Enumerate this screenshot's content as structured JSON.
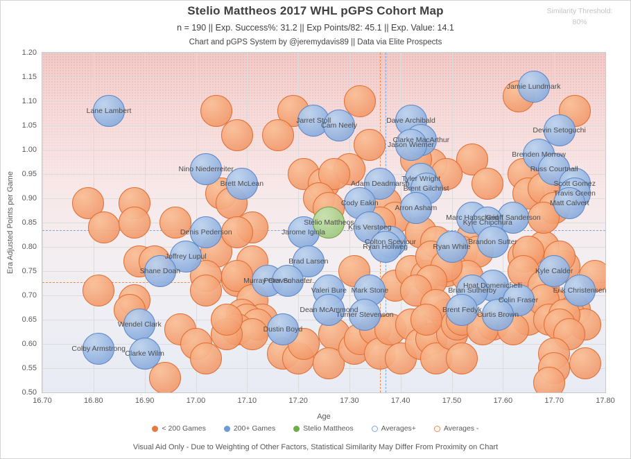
{
  "header": {
    "title": "Stelio Mattheos 2017 WHL pGPS Cohort Map",
    "subtitle": "n = 190 || Exp. Success%: 31.2 || Exp Points/82: 45.1 || Exp. Value: 14.1",
    "credit": "Chart and pGPS System by @jeremydavis89 || Data via Elite Prospects",
    "similarity_label": "Similarity Threshold:",
    "similarity_value": "80%"
  },
  "footnote": "Visual Aid Only - Due to Weighting of Other Factors, Statistical Similarity May Differ From Proximity on Chart",
  "legend": {
    "items": [
      {
        "label": "< 200 Games",
        "type": "filled",
        "color": "#e8793e"
      },
      {
        "label": "200+ Games",
        "type": "filled",
        "color": "#6e9bd1"
      },
      {
        "label": "Stelio Mattheos",
        "type": "filled",
        "color": "#71ad47"
      },
      {
        "label": "Averages+",
        "type": "open",
        "color": "#7ba7db"
      },
      {
        "label": "Averages -",
        "type": "open",
        "color": "#ed8a50"
      }
    ]
  },
  "chart_data": {
    "type": "scatter",
    "xlabel": "Age",
    "ylabel": "Era Adjusted Points per Game",
    "xlim": [
      16.7,
      17.8
    ],
    "ylim": [
      0.5,
      1.2
    ],
    "x_ticks": [
      16.7,
      16.8,
      16.9,
      17.0,
      17.1,
      17.2,
      17.3,
      17.4,
      17.5,
      17.6,
      17.7,
      17.8
    ],
    "y_ticks": [
      0.5,
      0.55,
      0.6,
      0.65,
      0.7,
      0.75,
      0.8,
      0.85,
      0.9,
      0.95,
      1.0,
      1.05,
      1.1,
      1.15,
      1.2
    ],
    "averages_plus": {
      "age": 17.37,
      "ppg": 0.835,
      "color": "#7ba7db"
    },
    "averages_minus": {
      "age": 17.36,
      "ppg": 0.727,
      "color": "#ed8a50"
    },
    "series": [
      {
        "name": "< 200 Games",
        "css": "o",
        "fill": "#f29a6a",
        "stroke": "#e06f35",
        "points": [
          [
            17.04,
            1.08
          ],
          [
            17.08,
            1.03
          ],
          [
            17.19,
            1.08
          ],
          [
            17.16,
            1.03
          ],
          [
            17.32,
            1.1
          ],
          [
            17.34,
            1.01
          ],
          [
            17.3,
            0.96
          ],
          [
            17.46,
            0.97
          ],
          [
            17.63,
            1.11
          ],
          [
            17.74,
            1.08
          ],
          [
            17.54,
            0.98
          ],
          [
            17.64,
            0.95
          ],
          [
            17.65,
            0.91
          ],
          [
            17.57,
            0.93
          ],
          [
            17.49,
            0.95
          ],
          [
            17.43,
            0.98
          ],
          [
            16.79,
            0.89
          ],
          [
            16.82,
            0.84
          ],
          [
            16.88,
            0.89
          ],
          [
            16.88,
            0.85
          ],
          [
            16.96,
            0.85
          ],
          [
            17.05,
            0.91
          ],
          [
            17.07,
            0.89
          ],
          [
            17.11,
            0.84
          ],
          [
            17.04,
            0.79
          ],
          [
            17.08,
            0.83
          ],
          [
            16.89,
            0.77
          ],
          [
            16.92,
            0.77
          ],
          [
            17.02,
            0.74
          ],
          [
            17.02,
            0.71
          ],
          [
            16.81,
            0.71
          ],
          [
            16.88,
            0.69
          ],
          [
            16.87,
            0.67
          ],
          [
            17.08,
            0.73
          ],
          [
            17.21,
            0.95
          ],
          [
            17.25,
            0.93
          ],
          [
            17.27,
            0.95
          ],
          [
            17.24,
            0.9
          ],
          [
            17.26,
            0.88
          ],
          [
            17.37,
            0.89
          ],
          [
            17.39,
            0.86
          ],
          [
            17.36,
            0.85
          ],
          [
            17.44,
            0.83
          ],
          [
            17.47,
            0.81
          ],
          [
            17.54,
            0.82
          ],
          [
            17.11,
            0.77
          ],
          [
            17.08,
            0.74
          ],
          [
            17.11,
            0.69
          ],
          [
            17.09,
            0.66
          ],
          [
            17.13,
            0.65
          ],
          [
            17.31,
            0.75
          ],
          [
            17.39,
            0.72
          ],
          [
            17.42,
            0.75
          ],
          [
            17.45,
            0.74
          ],
          [
            17.49,
            0.75
          ],
          [
            17.52,
            0.79
          ],
          [
            17.55,
            0.79
          ],
          [
            17.53,
            0.74
          ],
          [
            17.1,
            0.65
          ],
          [
            17.12,
            0.64
          ],
          [
            17.08,
            0.63
          ],
          [
            17.11,
            0.62
          ],
          [
            17.17,
            0.58
          ],
          [
            17.2,
            0.57
          ],
          [
            17.21,
            0.6
          ],
          [
            17.27,
            0.62
          ],
          [
            17.26,
            0.56
          ],
          [
            17.31,
            0.59
          ],
          [
            17.32,
            0.61
          ],
          [
            17.35,
            0.63
          ],
          [
            17.36,
            0.58
          ],
          [
            17.38,
            0.63
          ],
          [
            17.4,
            0.57
          ],
          [
            17.42,
            0.64
          ],
          [
            17.44,
            0.6
          ],
          [
            17.46,
            0.61
          ],
          [
            17.47,
            0.57
          ],
          [
            17.49,
            0.66
          ],
          [
            17.5,
            0.62
          ],
          [
            17.52,
            0.57
          ],
          [
            16.97,
            0.63
          ],
          [
            17.0,
            0.6
          ],
          [
            17.02,
            0.57
          ],
          [
            17.06,
            0.62
          ],
          [
            17.06,
            0.65
          ],
          [
            16.94,
            0.53
          ],
          [
            17.46,
            0.78
          ],
          [
            17.49,
            0.76
          ],
          [
            17.46,
            0.73
          ],
          [
            17.43,
            0.71
          ],
          [
            17.47,
            0.68
          ],
          [
            17.45,
            0.65
          ],
          [
            17.51,
            0.64
          ],
          [
            17.58,
            0.64
          ],
          [
            17.65,
            0.65
          ],
          [
            17.7,
            0.68
          ],
          [
            17.74,
            0.67
          ],
          [
            17.78,
            0.74
          ],
          [
            17.72,
            0.76
          ],
          [
            17.67,
            0.78
          ],
          [
            17.64,
            0.78
          ],
          [
            17.68,
            0.8
          ],
          [
            17.65,
            0.79
          ],
          [
            17.71,
            0.78
          ],
          [
            17.64,
            0.75
          ],
          [
            17.68,
            0.72
          ],
          [
            17.68,
            0.69
          ],
          [
            17.69,
            0.65
          ],
          [
            17.73,
            0.66
          ],
          [
            17.76,
            0.64
          ],
          [
            17.52,
            0.65
          ],
          [
            17.56,
            0.63
          ],
          [
            17.62,
            0.63
          ],
          [
            17.68,
            0.92
          ],
          [
            17.7,
            0.88
          ],
          [
            17.68,
            0.86
          ],
          [
            17.72,
            0.66
          ],
          [
            17.71,
            0.64
          ],
          [
            17.73,
            0.62
          ],
          [
            17.7,
            0.58
          ],
          [
            17.76,
            0.56
          ],
          [
            17.7,
            0.55
          ],
          [
            17.69,
            0.52
          ]
        ]
      },
      {
        "name": "200+ Games",
        "css": "b",
        "fill": "#8fb1e0",
        "stroke": "#5d87c6",
        "points": [
          {
            "label": "Lane Lambert",
            "age": 16.83,
            "ppg": 1.08
          },
          {
            "label": "Jamie Lundmark",
            "age": 17.66,
            "ppg": 1.13
          },
          {
            "label": "Jarret Stoll",
            "age": 17.23,
            "ppg": 1.06
          },
          {
            "label": "Cam Neely",
            "age": 17.28,
            "ppg": 1.05
          },
          {
            "label": "Dave Archibald",
            "age": 17.42,
            "ppg": 1.06
          },
          {
            "label": "Clarke MacArthur",
            "age": 17.44,
            "ppg": 1.02
          },
          {
            "label": "Jason Wiemer",
            "age": 17.42,
            "ppg": 1.01
          },
          {
            "label": "Devin Setoguchi",
            "age": 17.71,
            "ppg": 1.04
          },
          {
            "label": "Brenden Morrow",
            "age": 17.67,
            "ppg": 0.99
          },
          {
            "label": "Russ Courtnall",
            "age": 17.7,
            "ppg": 0.96
          },
          {
            "label": "Scott Gomez",
            "age": 17.74,
            "ppg": 0.93
          },
          {
            "label": "Travis Green",
            "age": 17.74,
            "ppg": 0.91
          },
          {
            "label": "Matt Calvert",
            "age": 17.73,
            "ppg": 0.89
          },
          {
            "label": "Nino Niederreiter",
            "age": 17.02,
            "ppg": 0.96
          },
          {
            "label": "Brett McLean",
            "age": 17.09,
            "ppg": 0.93
          },
          {
            "label": "Adam Deadmarsh",
            "age": 17.36,
            "ppg": 0.93
          },
          {
            "label": "Tyler Wright",
            "age": 17.44,
            "ppg": 0.94
          },
          {
            "label": "Brent Gilchrist",
            "age": 17.45,
            "ppg": 0.92
          },
          {
            "label": "Cody Eakin",
            "age": 17.32,
            "ppg": 0.89
          },
          {
            "label": "Arron Asham",
            "age": 17.43,
            "ppg": 0.88
          },
          {
            "label": "Kris Versteeg",
            "age": 17.34,
            "ppg": 0.84
          },
          {
            "label": "Jarome Iginla",
            "age": 17.21,
            "ppg": 0.83
          },
          {
            "label": "Denis Pederson",
            "age": 17.02,
            "ppg": 0.83
          },
          {
            "label": "Marc Habscheid",
            "age": 17.54,
            "ppg": 0.86
          },
          {
            "label": "Geoff Sanderson",
            "age": 17.62,
            "ppg": 0.86
          },
          {
            "label": "Kyle Chipchura",
            "age": 17.57,
            "ppg": 0.85
          },
          {
            "label": "Brandon Sutter",
            "age": 17.58,
            "ppg": 0.81
          },
          {
            "label": "Colton Sceviour",
            "age": 17.38,
            "ppg": 0.81
          },
          {
            "label": "Ryan Hollweg",
            "age": 17.37,
            "ppg": 0.8
          },
          {
            "label": "Ryan White",
            "age": 17.5,
            "ppg": 0.8
          },
          {
            "label": "Joffrey Lupul",
            "age": 16.98,
            "ppg": 0.78
          },
          {
            "label": "Shane Doan",
            "age": 16.93,
            "ppg": 0.75
          },
          {
            "label": "Brad Larsen",
            "age": 17.22,
            "ppg": 0.77
          },
          {
            "label": "Murray Craven",
            "age": 17.14,
            "ppg": 0.73
          },
          {
            "label": "Peter Schaefer",
            "age": 17.18,
            "ppg": 0.73
          },
          {
            "label": "Valeri Bure",
            "age": 17.26,
            "ppg": 0.71
          },
          {
            "label": "Mark Stone",
            "age": 17.34,
            "ppg": 0.71
          },
          {
            "label": "Kyle Calder",
            "age": 17.7,
            "ppg": 0.75
          },
          {
            "label": "Erik Christensen",
            "age": 17.75,
            "ppg": 0.71
          },
          {
            "label": "Hnat Domenichelli",
            "age": 17.58,
            "ppg": 0.72
          },
          {
            "label": "Brian Sutherby",
            "age": 17.54,
            "ppg": 0.71
          },
          {
            "label": "Colin Fraser",
            "age": 17.63,
            "ppg": 0.69
          },
          {
            "label": "Brent Fedyk",
            "age": 17.52,
            "ppg": 0.67
          },
          {
            "label": "Curtis Brown",
            "age": 17.59,
            "ppg": 0.66
          },
          {
            "label": "Dean McAmmond",
            "age": 17.26,
            "ppg": 0.67
          },
          {
            "label": "Turner Stevenson",
            "age": 17.33,
            "ppg": 0.66
          },
          {
            "label": "Dustin Boyd",
            "age": 17.17,
            "ppg": 0.63
          },
          {
            "label": "Wendel Clark",
            "age": 16.89,
            "ppg": 0.64
          },
          {
            "label": "Colby Armstrong",
            "age": 16.81,
            "ppg": 0.59
          },
          {
            "label": "Clarke Wilm",
            "age": 16.9,
            "ppg": 0.58
          }
        ]
      },
      {
        "name": "Stelio Mattheos",
        "css": "g",
        "fill": "#a2cc84",
        "stroke": "#6fa04c",
        "points": [
          {
            "label": "Stelio Mattheos",
            "age": 17.26,
            "ppg": 0.85
          }
        ]
      }
    ]
  }
}
